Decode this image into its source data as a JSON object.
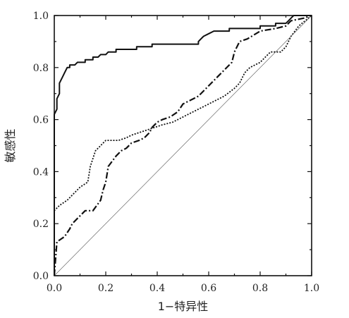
{
  "chart_data": {
    "type": "line",
    "xlabel": "1−特异性",
    "ylabel": "敏感性",
    "xlim": [
      0.0,
      1.0
    ],
    "ylim": [
      0.0,
      1.0
    ],
    "grid": false,
    "x_ticks": [
      "0.0",
      "0.2",
      "0.4",
      "0.6",
      "0.8",
      "1.0"
    ],
    "y_ticks": [
      "0.0",
      "0.2",
      "0.4",
      "0.6",
      "0.8",
      "1.0"
    ],
    "series": [
      {
        "style": "solid",
        "color": "#111111",
        "points": [
          [
            0,
            0
          ],
          [
            0,
            0.62
          ],
          [
            0.01,
            0.64
          ],
          [
            0.01,
            0.68
          ],
          [
            0.02,
            0.7
          ],
          [
            0.02,
            0.74
          ],
          [
            0.03,
            0.76
          ],
          [
            0.04,
            0.78
          ],
          [
            0.05,
            0.8
          ],
          [
            0.06,
            0.8
          ],
          [
            0.06,
            0.81
          ],
          [
            0.08,
            0.81
          ],
          [
            0.09,
            0.82
          ],
          [
            0.12,
            0.82
          ],
          [
            0.12,
            0.83
          ],
          [
            0.15,
            0.83
          ],
          [
            0.15,
            0.84
          ],
          [
            0.17,
            0.84
          ],
          [
            0.18,
            0.85
          ],
          [
            0.2,
            0.85
          ],
          [
            0.21,
            0.86
          ],
          [
            0.24,
            0.86
          ],
          [
            0.24,
            0.87
          ],
          [
            0.32,
            0.87
          ],
          [
            0.32,
            0.88
          ],
          [
            0.38,
            0.88
          ],
          [
            0.38,
            0.89
          ],
          [
            0.56,
            0.89
          ],
          [
            0.56,
            0.9
          ],
          [
            0.57,
            0.91
          ],
          [
            0.58,
            0.92
          ],
          [
            0.6,
            0.93
          ],
          [
            0.62,
            0.94
          ],
          [
            0.68,
            0.94
          ],
          [
            0.68,
            0.95
          ],
          [
            0.8,
            0.95
          ],
          [
            0.8,
            0.96
          ],
          [
            0.86,
            0.96
          ],
          [
            0.86,
            0.97
          ],
          [
            0.9,
            0.97
          ],
          [
            0.91,
            0.98
          ],
          [
            0.92,
            0.99
          ],
          [
            0.93,
            1.0
          ],
          [
            1,
            1.0
          ]
        ]
      },
      {
        "style": "dashdot",
        "color": "#111111",
        "points": [
          [
            0,
            0
          ],
          [
            0.01,
            0.13
          ],
          [
            0.04,
            0.15
          ],
          [
            0.06,
            0.18
          ],
          [
            0.07,
            0.2
          ],
          [
            0.1,
            0.23
          ],
          [
            0.12,
            0.25
          ],
          [
            0.15,
            0.25
          ],
          [
            0.18,
            0.29
          ],
          [
            0.19,
            0.33
          ],
          [
            0.2,
            0.36
          ],
          [
            0.21,
            0.42
          ],
          [
            0.24,
            0.46
          ],
          [
            0.26,
            0.48
          ],
          [
            0.28,
            0.49
          ],
          [
            0.3,
            0.51
          ],
          [
            0.33,
            0.52
          ],
          [
            0.35,
            0.53
          ],
          [
            0.37,
            0.55
          ],
          [
            0.38,
            0.57
          ],
          [
            0.4,
            0.59
          ],
          [
            0.42,
            0.6
          ],
          [
            0.45,
            0.61
          ],
          [
            0.48,
            0.63
          ],
          [
            0.5,
            0.66
          ],
          [
            0.54,
            0.68
          ],
          [
            0.56,
            0.69
          ],
          [
            0.6,
            0.73
          ],
          [
            0.63,
            0.76
          ],
          [
            0.66,
            0.79
          ],
          [
            0.69,
            0.82
          ],
          [
            0.7,
            0.86
          ],
          [
            0.72,
            0.9
          ],
          [
            0.75,
            0.91
          ],
          [
            0.8,
            0.94
          ],
          [
            0.86,
            0.95
          ],
          [
            0.9,
            0.96
          ],
          [
            0.92,
            0.98
          ],
          [
            0.97,
            0.99
          ],
          [
            1,
            1.0
          ]
        ]
      },
      {
        "style": "dotted",
        "color": "#111111",
        "points": [
          [
            0,
            0
          ],
          [
            0,
            0.25
          ],
          [
            0.02,
            0.27
          ],
          [
            0.05,
            0.29
          ],
          [
            0.08,
            0.32
          ],
          [
            0.1,
            0.34
          ],
          [
            0.13,
            0.36
          ],
          [
            0.14,
            0.42
          ],
          [
            0.16,
            0.48
          ],
          [
            0.2,
            0.52
          ],
          [
            0.25,
            0.52
          ],
          [
            0.28,
            0.53
          ],
          [
            0.3,
            0.54
          ],
          [
            0.33,
            0.55
          ],
          [
            0.36,
            0.56
          ],
          [
            0.39,
            0.57
          ],
          [
            0.42,
            0.58
          ],
          [
            0.46,
            0.59
          ],
          [
            0.5,
            0.61
          ],
          [
            0.54,
            0.63
          ],
          [
            0.58,
            0.65
          ],
          [
            0.62,
            0.67
          ],
          [
            0.66,
            0.69
          ],
          [
            0.7,
            0.72
          ],
          [
            0.72,
            0.74
          ],
          [
            0.74,
            0.78
          ],
          [
            0.76,
            0.8
          ],
          [
            0.8,
            0.82
          ],
          [
            0.84,
            0.86
          ],
          [
            0.88,
            0.86
          ],
          [
            0.9,
            0.88
          ],
          [
            0.92,
            0.92
          ],
          [
            0.95,
            0.96
          ],
          [
            1,
            1.0
          ]
        ]
      },
      {
        "style": "thin",
        "color": "#555555",
        "points": [
          [
            0,
            0
          ],
          [
            1,
            1
          ]
        ]
      }
    ]
  }
}
